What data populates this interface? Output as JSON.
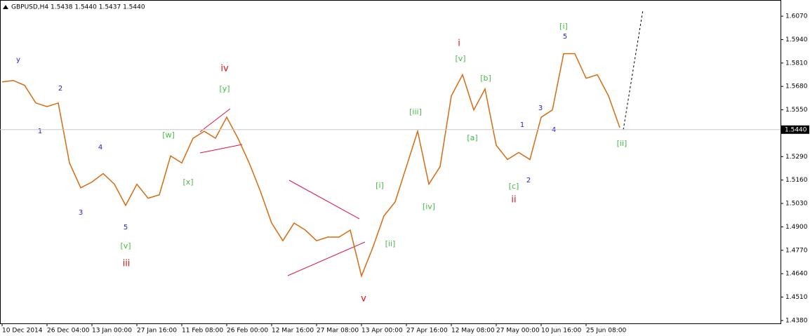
{
  "chart_data": {
    "type": "line",
    "title": "GBPUSD,H4  1.5438 1.5440 1.5437 1.5440",
    "categories": [
      "10 Dec 2014",
      null,
      null,
      null,
      "26 Dec 04:00",
      null,
      null,
      null,
      "13 Jan 00:00",
      null,
      null,
      null,
      "27 Jan 16:00",
      null,
      null,
      null,
      "11 Feb 08:00",
      null,
      null,
      null,
      "26 Feb 00:00",
      null,
      null,
      null,
      "12 Mar 16:00",
      null,
      null,
      null,
      "27 Mar 08:00",
      null,
      null,
      null,
      "13 Apr 00:00",
      null,
      null,
      null,
      "27 Apr 16:00",
      null,
      null,
      null,
      "12 May 08:00",
      null,
      null,
      null,
      "27 May 00:00",
      null,
      null,
      null,
      "10 Jun 16:00",
      null,
      null,
      null,
      "25 Jun 08:00",
      null,
      null,
      null
    ],
    "series": [
      {
        "name": "GBPUSD",
        "color": "#d86a10",
        "values": [
          1.5705,
          1.5713,
          1.5686,
          1.5588,
          1.5568,
          1.5588,
          1.5255,
          1.5117,
          1.5149,
          1.5196,
          1.5137,
          1.5019,
          1.5137,
          1.5059,
          1.5078,
          1.5294,
          1.5255,
          1.5392,
          1.5431,
          1.5392,
          1.5509,
          1.5392,
          1.5255,
          1.5098,
          1.4921,
          1.4823,
          1.4921,
          1.4882,
          1.4823,
          1.4843,
          1.4843,
          1.4882,
          1.4627,
          1.4784,
          1.4961,
          1.5039,
          1.5235,
          1.5431,
          1.5137,
          1.5235,
          1.5627,
          1.5745,
          1.5549,
          1.5666,
          1.5353,
          1.5274,
          1.5313,
          1.5274,
          1.5509,
          1.5549,
          1.5862,
          1.5862,
          1.5725,
          1.5745,
          1.5627,
          1.5451
        ]
      }
    ],
    "ylim": [
      1.4364,
      1.6156
    ],
    "yticks": [
      {
        "value": 1.607,
        "label": "1.6070"
      },
      {
        "value": 1.594,
        "label": "1.5940"
      },
      {
        "value": 1.581,
        "label": "1.5810"
      },
      {
        "value": 1.568,
        "label": "1.5680"
      },
      {
        "value": 1.555,
        "label": "1.5550"
      },
      {
        "value": 1.529,
        "label": "1.5290"
      },
      {
        "value": 1.516,
        "label": "1.5160"
      },
      {
        "value": 1.503,
        "label": "1.5030"
      },
      {
        "value": 1.49,
        "label": "1.4900"
      },
      {
        "value": 1.477,
        "label": "1.4770"
      },
      {
        "value": 1.464,
        "label": "1.4640"
      },
      {
        "value": 1.451,
        "label": "1.4510"
      },
      {
        "value": 1.438,
        "label": "1.4380"
      }
    ],
    "last_price": {
      "value": 1.544,
      "label": "1.5440"
    },
    "annotations": [
      "y",
      "1",
      "2",
      "3",
      "4",
      "5",
      "[v]",
      "iii",
      "[w]",
      "[x]",
      "iv",
      "[y]",
      "v",
      "[i]",
      "[ii]",
      "[iii]",
      "[iv]",
      "i",
      "[v]",
      "[b]",
      "[a]",
      "[c]",
      "ii",
      "1",
      "2",
      "3",
      "4",
      "5",
      "[i]",
      "[ii]"
    ]
  }
}
